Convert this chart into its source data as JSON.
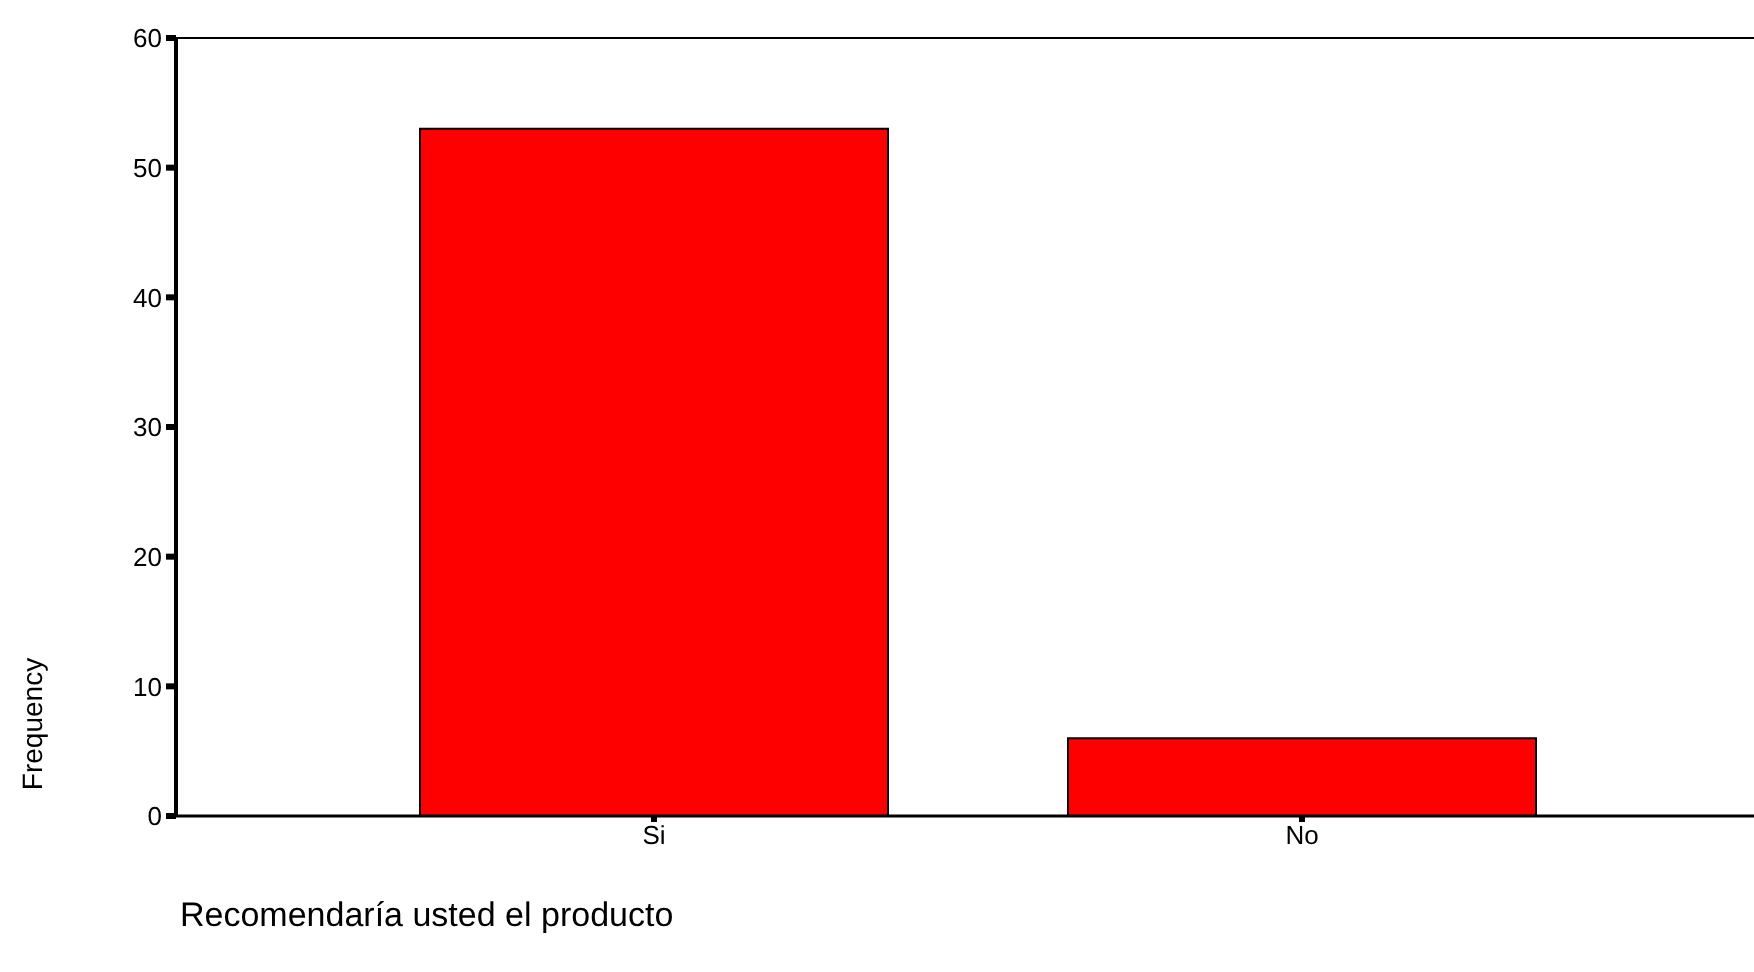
{
  "chart_data": {
    "type": "bar",
    "xlabel": "Recomendaría usted el producto",
    "ylabel": "Frequency",
    "categories": [
      "Si",
      "No"
    ],
    "values": [
      53,
      6
    ],
    "color": "#ff0000",
    "ylim": [
      0,
      60
    ],
    "yticks": [
      0,
      10,
      20,
      30,
      40,
      50,
      60
    ],
    "grid": false,
    "legend": false
  }
}
